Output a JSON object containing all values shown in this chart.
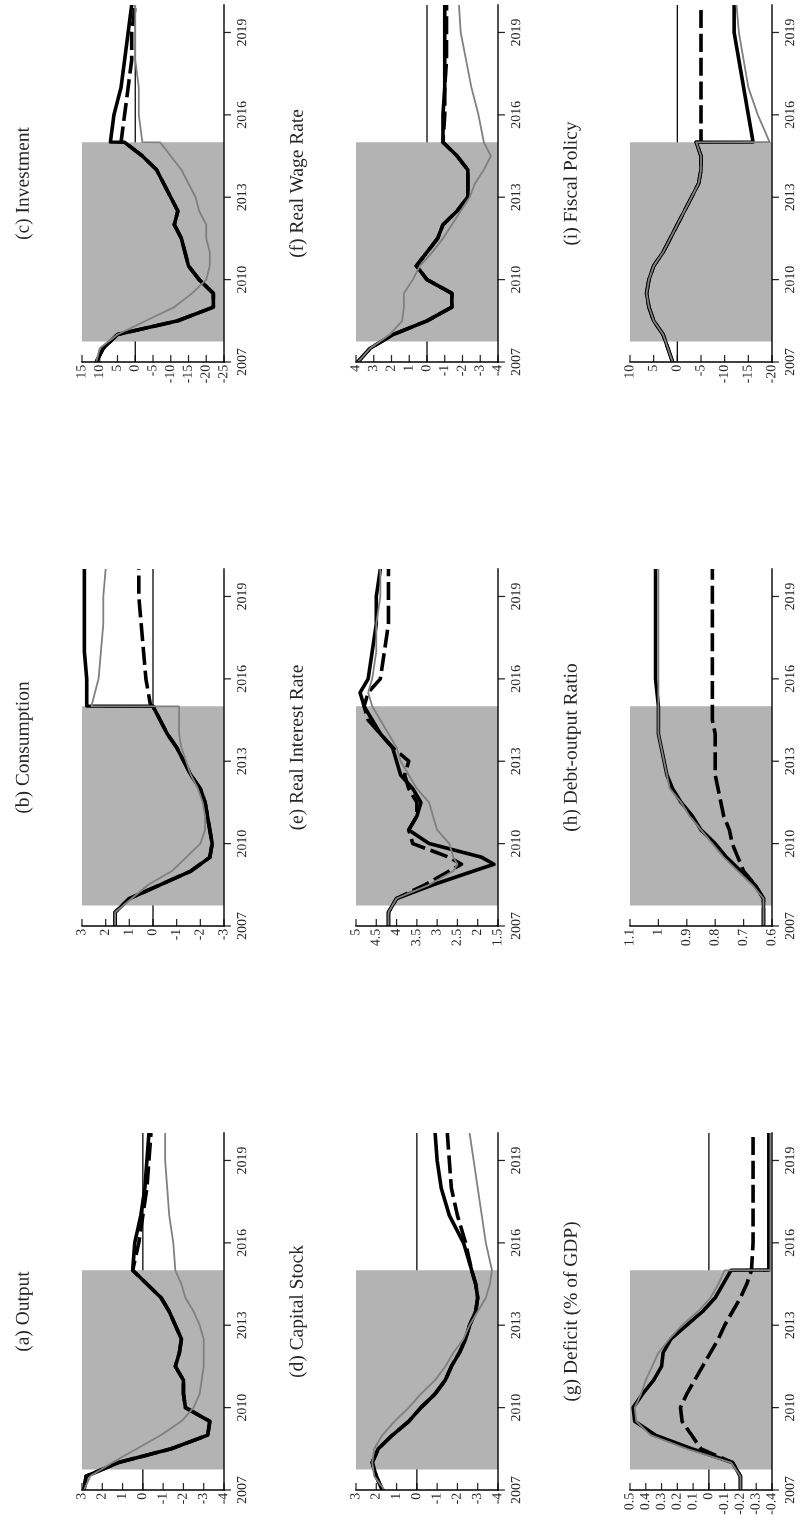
{
  "chart_data": [
    {
      "type": "line",
      "title": "(a) Output",
      "xlim": [
        3,
        -4
      ],
      "xticks": [
        -4,
        -3,
        -2,
        -1,
        0,
        1,
        2,
        3
      ],
      "ylim": [
        2007,
        2020
      ],
      "yticks": [
        2007,
        2010,
        2013,
        2016,
        2019
      ],
      "bands": [
        {
          "axis": "y",
          "from": 2007.75,
          "to": 2015,
          "color": "#b3b3b3"
        }
      ],
      "ref_lines": [
        {
          "axis": "x",
          "value": 0,
          "color": "#000000"
        }
      ],
      "series": [
        {
          "color": "#000000",
          "line_style": "dashed",
          "x": [
            2.9,
            2.8,
            1.2,
            -1.4,
            -3.2,
            -3.3,
            -2.1,
            -2.0,
            -2.0,
            -1.6,
            -1.8,
            -1.9,
            -1.6,
            -1.3,
            -0.9,
            -0.2,
            0.5,
            0.5,
            0.2,
            0.0,
            -0.2,
            -0.3,
            -0.4
          ],
          "values": [
            2007,
            2007.5,
            2008,
            2008.5,
            2009,
            2009.5,
            2010,
            2010.5,
            2011,
            2011.5,
            2012,
            2012.5,
            2013,
            2013.5,
            2014,
            2014.5,
            2015,
            2015.01,
            2016,
            2017,
            2018,
            2019,
            2020
          ]
        },
        {
          "color": "#000000",
          "line_style": "solid",
          "x": [
            2.9,
            2.8,
            1.2,
            -1.4,
            -3.2,
            -3.3,
            -2.1,
            -2.0,
            -2.0,
            -1.6,
            -1.8,
            -1.9,
            -1.6,
            -1.3,
            -0.9,
            -0.2,
            0.5,
            0.5,
            0.4,
            0.1,
            -0.1,
            -0.2,
            -0.3
          ],
          "values": [
            2007,
            2007.5,
            2008,
            2008.5,
            2009,
            2009.5,
            2010,
            2010.5,
            2011,
            2011.5,
            2012,
            2012.5,
            2013,
            2013.5,
            2014,
            2014.5,
            2015,
            2015.01,
            2016,
            2017,
            2018,
            2019,
            2020
          ]
        },
        {
          "color": "#808080",
          "line_style": "solid",
          "x": [
            2.9,
            2.6,
            1.5,
            0.3,
            -0.9,
            -1.9,
            -2.5,
            -2.8,
            -2.9,
            -3.0,
            -3.0,
            -3.0,
            -2.8,
            -2.5,
            -2.1,
            -1.9,
            -1.6,
            -1.6,
            -1.5,
            -1.3,
            -1.2,
            -1.1,
            -1.1
          ],
          "values": [
            2007,
            2007.5,
            2008,
            2008.5,
            2009,
            2009.5,
            2010,
            2010.5,
            2011,
            2011.5,
            2012,
            2012.5,
            2013,
            2013.5,
            2014,
            2014.5,
            2015,
            2015.01,
            2016,
            2017,
            2018,
            2019,
            2020
          ]
        }
      ]
    },
    {
      "type": "line",
      "title": "(b) Consumption",
      "xlim": [
        3,
        -3
      ],
      "xticks": [
        -3,
        -2,
        -1,
        0,
        1,
        2,
        3
      ],
      "ylim": [
        2007,
        2020
      ],
      "yticks": [
        2007,
        2010,
        2013,
        2016,
        2019
      ],
      "bands": [
        {
          "axis": "y",
          "from": 2007.75,
          "to": 2015,
          "color": "#b3b3b3"
        }
      ],
      "ref_lines": [
        {
          "axis": "x",
          "value": 0,
          "color": "#000000"
        }
      ],
      "series": [
        {
          "color": "#000000",
          "line_style": "dashed",
          "x": [
            1.6,
            1.6,
            1.0,
            -0.3,
            -1.6,
            -2.4,
            -2.5,
            -2.4,
            -2.3,
            -2.2,
            -2.0,
            -1.6,
            -1.3,
            -1.0,
            -0.6,
            -0.3,
            0.0,
            0.1,
            0.3,
            0.4,
            0.5,
            0.6,
            0.6
          ],
          "values": [
            2007,
            2007.5,
            2008,
            2008.5,
            2009,
            2009.5,
            2010,
            2010.5,
            2011,
            2011.5,
            2012,
            2012.5,
            2013,
            2013.5,
            2014,
            2014.5,
            2015,
            2015.01,
            2016,
            2017,
            2018,
            2019,
            2020
          ]
        },
        {
          "color": "#000000",
          "line_style": "solid",
          "x": [
            1.6,
            1.6,
            1.0,
            -0.3,
            -1.6,
            -2.4,
            -2.5,
            -2.4,
            -2.3,
            -2.2,
            -2.0,
            -1.6,
            -1.3,
            -1.0,
            -0.6,
            -0.3,
            0.0,
            2.8,
            2.8,
            2.9,
            2.9,
            2.9,
            2.9
          ],
          "values": [
            2007,
            2007.5,
            2008,
            2008.5,
            2009,
            2009.5,
            2010,
            2010.5,
            2011,
            2011.5,
            2012,
            2012.5,
            2013,
            2013.5,
            2014,
            2014.5,
            2015,
            2015.01,
            2016,
            2017,
            2018,
            2019,
            2020
          ]
        },
        {
          "color": "#808080",
          "line_style": "solid",
          "x": [
            1.6,
            1.6,
            0.9,
            0.2,
            -0.8,
            -1.4,
            -2.0,
            -2.2,
            -2.2,
            -2.1,
            -1.9,
            -1.6,
            -1.4,
            -1.2,
            -1.1,
            -1.1,
            -1.1,
            2.6,
            2.3,
            2.2,
            2.1,
            2.1,
            2.0
          ],
          "values": [
            2007,
            2007.5,
            2008,
            2008.5,
            2009,
            2009.5,
            2010,
            2010.5,
            2011,
            2011.5,
            2012,
            2012.5,
            2013,
            2013.5,
            2014,
            2014.5,
            2015,
            2015.01,
            2016,
            2017,
            2018,
            2019,
            2020
          ]
        }
      ]
    },
    {
      "type": "line",
      "title": "(c) Investment",
      "xlim": [
        15,
        -25
      ],
      "xticks": [
        -25,
        -20,
        -15,
        -10,
        -5,
        0,
        5,
        10,
        15
      ],
      "ylim": [
        2007,
        2020
      ],
      "yticks": [
        2007,
        2010,
        2013,
        2016,
        2019
      ],
      "bands": [
        {
          "axis": "y",
          "from": 2007.75,
          "to": 2015,
          "color": "#b3b3b3"
        }
      ],
      "ref_lines": [
        {
          "axis": "x",
          "value": 0,
          "color": "#000000"
        }
      ],
      "series": [
        {
          "color": "#000000",
          "line_style": "dashed",
          "x": [
            11,
            9,
            5,
            -12,
            -22,
            -22,
            -18,
            -15,
            -14,
            -13,
            -11,
            -12,
            -10,
            -8,
            -6,
            -2,
            3,
            4,
            3,
            2,
            1,
            1,
            0
          ],
          "values": [
            2007,
            2007.5,
            2008,
            2008.5,
            2009,
            2009.5,
            2010,
            2010.5,
            2011,
            2011.5,
            2012,
            2012.5,
            2013,
            2013.5,
            2014,
            2014.5,
            2015,
            2015.01,
            2016,
            2017,
            2018,
            2019,
            2020
          ]
        },
        {
          "color": "#000000",
          "line_style": "solid",
          "x": [
            11,
            9,
            5,
            -12,
            -22,
            -22,
            -18,
            -15,
            -14,
            -13,
            -11,
            -12,
            -10,
            -8,
            -6,
            -2,
            3,
            7,
            6,
            4,
            3,
            2,
            1
          ],
          "values": [
            2007,
            2007.5,
            2008,
            2008.5,
            2009,
            2009.5,
            2010,
            2010.5,
            2011,
            2011.5,
            2012,
            2012.5,
            2013,
            2013.5,
            2014,
            2014.5,
            2015,
            2015.01,
            2016,
            2017,
            2018,
            2019,
            2020
          ]
        },
        {
          "color": "#808080",
          "line_style": "solid",
          "x": [
            11,
            10,
            5,
            -3,
            -11,
            -16,
            -20,
            -21,
            -21,
            -20,
            -20,
            -18,
            -17,
            -15,
            -13,
            -10,
            -7,
            -2,
            -1,
            -1,
            0,
            0,
            0
          ],
          "values": [
            2007,
            2007.5,
            2008,
            2008.5,
            2009,
            2009.5,
            2010,
            2010.5,
            2011,
            2011.5,
            2012,
            2012.5,
            2013,
            2013.5,
            2014,
            2014.5,
            2015,
            2015.01,
            2016,
            2017,
            2018,
            2019,
            2020
          ]
        }
      ]
    },
    {
      "type": "line",
      "title": "(d) Capital Stock",
      "xlim": [
        3,
        -4
      ],
      "xticks": [
        -4,
        -3,
        -2,
        -1,
        0,
        1,
        2,
        3
      ],
      "ylim": [
        2007,
        2020
      ],
      "yticks": [
        2007,
        2010,
        2013,
        2016,
        2019
      ],
      "bands": [
        {
          "axis": "y",
          "from": 2007.75,
          "to": 2015,
          "color": "#b3b3b3"
        }
      ],
      "ref_lines": [
        {
          "axis": "x",
          "value": 0,
          "color": "#000000"
        }
      ],
      "series": [
        {
          "color": "#000000",
          "line_style": "dashed",
          "x": [
            1.7,
            2.0,
            2.2,
            1.9,
            1.2,
            0.4,
            -0.2,
            -0.9,
            -1.4,
            -1.7,
            -2.1,
            -2.4,
            -2.6,
            -2.9,
            -3.0,
            -2.9,
            -2.7,
            -2.7,
            -2.4,
            -2.0,
            -1.7,
            -1.6,
            -1.5
          ],
          "values": [
            2007,
            2007.5,
            2008,
            2008.5,
            2009,
            2009.5,
            2010,
            2010.5,
            2011,
            2011.5,
            2012,
            2012.5,
            2013,
            2013.5,
            2014,
            2014.5,
            2015,
            2015.01,
            2016,
            2017,
            2018,
            2019,
            2020
          ]
        },
        {
          "color": "#000000",
          "line_style": "solid",
          "x": [
            1.7,
            2.0,
            2.2,
            1.9,
            1.2,
            0.4,
            -0.2,
            -0.9,
            -1.4,
            -1.7,
            -2.1,
            -2.4,
            -2.6,
            -2.9,
            -3.0,
            -2.9,
            -2.7,
            -2.7,
            -2.3,
            -1.6,
            -1.2,
            -1.0,
            -0.9
          ],
          "values": [
            2007,
            2007.5,
            2008,
            2008.5,
            2009,
            2009.5,
            2010,
            2010.5,
            2011,
            2011.5,
            2012,
            2012.5,
            2013,
            2013.5,
            2014,
            2014.5,
            2015,
            2015.01,
            2016,
            2017,
            2018,
            2019,
            2020
          ]
        },
        {
          "color": "#808080",
          "line_style": "solid",
          "x": [
            1.6,
            2.1,
            2.2,
            2.1,
            1.7,
            1.1,
            0.4,
            -0.2,
            -0.9,
            -1.4,
            -1.8,
            -2.3,
            -2.6,
            -3.0,
            -3.4,
            -3.6,
            -3.7,
            -3.7,
            -3.4,
            -3.2,
            -3.0,
            -2.8,
            -2.6
          ],
          "values": [
            2007,
            2007.5,
            2008,
            2008.5,
            2009,
            2009.5,
            2010,
            2010.5,
            2011,
            2011.5,
            2012,
            2012.5,
            2013,
            2013.5,
            2014,
            2014.5,
            2015,
            2015.01,
            2016,
            2017,
            2018,
            2019,
            2020
          ]
        }
      ]
    },
    {
      "type": "line",
      "title": "(e) Real Interest Rate",
      "xlim": [
        5,
        1.5
      ],
      "xticks": [
        1.5,
        2,
        2.5,
        3,
        3.5,
        4,
        4.5,
        5
      ],
      "ylim": [
        2007,
        2020
      ],
      "yticks": [
        2007,
        2010,
        2013,
        2016,
        2019
      ],
      "bands": [
        {
          "axis": "y",
          "from": 2007.75,
          "to": 2015,
          "color": "#b3b3b3"
        }
      ],
      "series": [
        {
          "color": "#000000",
          "line_style": "dashed",
          "x": [
            4.2,
            4.2,
            4.0,
            3.3,
            2.7,
            2.4,
            2.7,
            3.6,
            3.7,
            3.5,
            3.5,
            3.7,
            3.8,
            3.7,
            4.1,
            4.4,
            4.7,
            4.8,
            4.7,
            4.4,
            4.3,
            4.2,
            4.2,
            4.2
          ],
          "values": [
            2007,
            2007.5,
            2008,
            2008.5,
            2009,
            2009.25,
            2009.5,
            2010,
            2010.5,
            2011,
            2011.5,
            2012,
            2012.5,
            2013,
            2013.5,
            2014,
            2014.5,
            2015,
            2015.5,
            2016,
            2017,
            2018,
            2019,
            2020
          ]
        },
        {
          "color": "#000000",
          "line_style": "solid",
          "x": [
            4.2,
            4.2,
            4.0,
            3.1,
            2.1,
            1.6,
            1.9,
            3.2,
            3.7,
            3.5,
            3.4,
            3.6,
            3.9,
            4.0,
            4.1,
            4.4,
            4.6,
            4.8,
            4.9,
            4.7,
            4.6,
            4.5,
            4.5,
            4.4
          ],
          "values": [
            2007,
            2007.5,
            2008,
            2008.5,
            2009,
            2009.25,
            2009.5,
            2010,
            2010.5,
            2011,
            2011.5,
            2012,
            2012.5,
            2013,
            2013.5,
            2014,
            2014.5,
            2015,
            2015.5,
            2016,
            2017,
            2018,
            2019,
            2020
          ]
        },
        {
          "color": "#808080",
          "line_style": "solid",
          "x": [
            4.2,
            4.2,
            4.0,
            3.2,
            2.6,
            2.5,
            2.6,
            2.7,
            3.0,
            3.1,
            3.2,
            3.5,
            3.7,
            3.9,
            4.0,
            4.2,
            4.4,
            4.6,
            4.7,
            4.6,
            4.5,
            4.5,
            4.4,
            4.4
          ],
          "values": [
            2007,
            2007.5,
            2008,
            2008.5,
            2009,
            2009.25,
            2009.5,
            2010,
            2010.5,
            2011,
            2011.5,
            2012,
            2012.5,
            2013,
            2013.5,
            2014,
            2014.5,
            2015,
            2015.5,
            2016,
            2017,
            2018,
            2019,
            2020
          ]
        }
      ]
    },
    {
      "type": "line",
      "title": "(f) Real Wage Rate",
      "xlim": [
        4,
        -4
      ],
      "xticks": [
        -4,
        -3,
        -2,
        -1,
        0,
        1,
        2,
        3,
        4
      ],
      "ylim": [
        2007,
        2020
      ],
      "yticks": [
        2007,
        2010,
        2013,
        2016,
        2019
      ],
      "bands": [
        {
          "axis": "y",
          "from": 2007.75,
          "to": 2015,
          "color": "#b3b3b3"
        }
      ],
      "ref_lines": [
        {
          "axis": "x",
          "value": 0,
          "color": "#000000"
        }
      ],
      "series": [
        {
          "color": "#000000",
          "line_style": "dashed",
          "x": [
            3.9,
            3.2,
            1.9,
            0.0,
            -1.4,
            -1.4,
            0.0,
            0.6,
            0.0,
            -0.6,
            -0.9,
            -1.7,
            -2.3,
            -2.3,
            -2.3,
            -1.7,
            -0.9,
            -0.9,
            -1.0,
            -1.0,
            -1.1,
            -1.1,
            -1.1
          ],
          "values": [
            2007,
            2007.5,
            2008,
            2008.5,
            2009,
            2009.5,
            2010,
            2010.5,
            2011,
            2011.5,
            2012,
            2012.5,
            2013,
            2013.5,
            2014,
            2014.5,
            2015,
            2015.01,
            2016,
            2017,
            2018,
            2019,
            2020
          ]
        },
        {
          "color": "#000000",
          "line_style": "solid",
          "x": [
            3.9,
            3.2,
            1.9,
            0.0,
            -1.4,
            -1.4,
            0.0,
            0.6,
            0.0,
            -0.6,
            -0.9,
            -1.7,
            -2.3,
            -2.3,
            -2.3,
            -1.7,
            -0.9,
            -0.9,
            -0.9,
            -1.0,
            -1.0,
            -1.0,
            -1.0
          ],
          "values": [
            2007,
            2007.5,
            2008,
            2008.5,
            2009,
            2009.5,
            2010,
            2010.5,
            2011,
            2011.5,
            2012,
            2012.5,
            2013,
            2013.5,
            2014,
            2014.5,
            2015,
            2015.01,
            2016,
            2017,
            2018,
            2019,
            2020
          ]
        },
        {
          "color": "#808080",
          "line_style": "solid",
          "x": [
            3.9,
            3.2,
            2.1,
            1.4,
            1.3,
            1.3,
            0.8,
            0.4,
            -0.3,
            -0.9,
            -1.4,
            -1.9,
            -2.4,
            -2.7,
            -3.2,
            -3.6,
            -3.2,
            -3.2,
            -2.9,
            -2.5,
            -2.2,
            -1.9,
            -1.8
          ],
          "values": [
            2007,
            2007.5,
            2008,
            2008.5,
            2009,
            2009.5,
            2010,
            2010.5,
            2011,
            2011.5,
            2012,
            2012.5,
            2013,
            2013.5,
            2014,
            2014.5,
            2015,
            2015.01,
            2016,
            2017,
            2018,
            2019,
            2020
          ]
        }
      ]
    },
    {
      "type": "line",
      "title": "(g) Deficit (% of GDP)",
      "xlim": [
        0.5,
        -0.4
      ],
      "xticks": [
        -0.4,
        -0.3,
        -0.2,
        -0.1,
        0,
        0.1,
        0.2,
        0.3,
        0.4,
        0.5
      ],
      "ylim": [
        2007,
        2020
      ],
      "yticks": [
        2007,
        2010,
        2013,
        2016,
        2019
      ],
      "bands": [
        {
          "axis": "y",
          "from": 2007.75,
          "to": 2015,
          "color": "#b3b3b3"
        }
      ],
      "ref_lines": [
        {
          "axis": "x",
          "value": 0,
          "color": "#000000"
        }
      ],
      "series": [
        {
          "color": "#000000",
          "line_style": "dashed",
          "x": [
            -0.2,
            -0.2,
            -0.15,
            0.05,
            0.11,
            0.17,
            0.18,
            0.14,
            0.09,
            0.04,
            -0.01,
            -0.06,
            -0.1,
            -0.15,
            -0.2,
            -0.24,
            -0.27,
            -0.27,
            -0.28,
            -0.28,
            -0.28,
            -0.28,
            -0.28
          ],
          "values": [
            2007,
            2007.5,
            2008,
            2008.5,
            2009,
            2009.5,
            2010,
            2010.5,
            2011,
            2011.5,
            2012,
            2012.5,
            2013,
            2013.5,
            2014,
            2014.5,
            2015,
            2015.01,
            2016,
            2017,
            2018,
            2019,
            2020
          ]
        },
        {
          "color": "#000000",
          "line_style": "solid",
          "x": [
            -0.2,
            -0.2,
            -0.15,
            0.11,
            0.34,
            0.47,
            0.48,
            0.42,
            0.35,
            0.3,
            0.29,
            0.24,
            0.14,
            0.04,
            -0.04,
            -0.09,
            -0.14,
            -0.38,
            -0.38,
            -0.38,
            -0.38,
            -0.38,
            -0.38
          ],
          "values": [
            2007,
            2007.5,
            2008,
            2008.5,
            2009,
            2009.5,
            2010,
            2010.5,
            2011,
            2011.5,
            2012,
            2012.5,
            2013,
            2013.5,
            2014,
            2014.5,
            2015,
            2015.01,
            2016,
            2017,
            2018,
            2019,
            2020
          ]
        },
        {
          "color": "#808080",
          "line_style": "solid",
          "x": [
            -0.2,
            -0.2,
            -0.14,
            0.14,
            0.37,
            0.46,
            0.47,
            0.43,
            0.4,
            0.36,
            0.32,
            0.25,
            0.17,
            0.07,
            -0.01,
            -0.06,
            -0.1,
            -0.39,
            -0.39,
            -0.39,
            -0.39,
            -0.39,
            -0.39
          ],
          "values": [
            2007,
            2007.5,
            2008,
            2008.5,
            2009,
            2009.5,
            2010,
            2010.5,
            2011,
            2011.5,
            2012,
            2012.5,
            2013,
            2013.5,
            2014,
            2014.5,
            2015,
            2015.01,
            2016,
            2017,
            2018,
            2019,
            2020
          ]
        }
      ]
    },
    {
      "type": "line",
      "title": "(h) Debt-output Ratio",
      "xlim": [
        1.1,
        0.6
      ],
      "xticks": [
        0.6,
        0.7,
        0.8,
        0.9,
        1,
        1.1
      ],
      "ylim": [
        2007,
        2020
      ],
      "yticks": [
        2007,
        2010,
        2013,
        2016,
        2019
      ],
      "bands": [
        {
          "axis": "y",
          "from": 2007.75,
          "to": 2015,
          "color": "#b3b3b3"
        }
      ],
      "series": [
        {
          "color": "#000000",
          "line_style": "dashed",
          "x": [
            0.63,
            0.63,
            0.63,
            0.66,
            0.7,
            0.72,
            0.74,
            0.75,
            0.77,
            0.78,
            0.79,
            0.8,
            0.8,
            0.8,
            0.8,
            0.81,
            0.81,
            0.81,
            0.81,
            0.81,
            0.81,
            0.81,
            0.81
          ],
          "values": [
            2007,
            2007.5,
            2008,
            2008.5,
            2009,
            2009.5,
            2010,
            2010.5,
            2011,
            2011.5,
            2012,
            2012.5,
            2013,
            2013.5,
            2014,
            2014.5,
            2015,
            2015.01,
            2016,
            2017,
            2018,
            2019,
            2020
          ]
        },
        {
          "color": "#000000",
          "line_style": "solid",
          "x": [
            0.63,
            0.63,
            0.63,
            0.66,
            0.71,
            0.76,
            0.8,
            0.85,
            0.88,
            0.92,
            0.95,
            0.97,
            0.98,
            0.99,
            1.0,
            1.0,
            1.0,
            1.0,
            1.01,
            1.01,
            1.01,
            1.01,
            1.01
          ],
          "values": [
            2007,
            2007.5,
            2008,
            2008.5,
            2009,
            2009.5,
            2010,
            2010.5,
            2011,
            2011.5,
            2012,
            2012.5,
            2013,
            2013.5,
            2014,
            2014.5,
            2015,
            2015.01,
            2016,
            2017,
            2018,
            2019,
            2020
          ]
        },
        {
          "color": "#808080",
          "line_style": "solid",
          "x": [
            0.63,
            0.63,
            0.63,
            0.67,
            0.72,
            0.77,
            0.81,
            0.85,
            0.89,
            0.92,
            0.96,
            0.97,
            0.98,
            0.99,
            1.0,
            1.0,
            1.0,
            1.0,
            1.0,
            1.0,
            1.0,
            1.0,
            1.0
          ],
          "values": [
            2007,
            2007.5,
            2008,
            2008.5,
            2009,
            2009.5,
            2010,
            2010.5,
            2011,
            2011.5,
            2012,
            2012.5,
            2013,
            2013.5,
            2014,
            2014.5,
            2015,
            2015.01,
            2016,
            2017,
            2018,
            2019,
            2020
          ]
        }
      ]
    },
    {
      "type": "line",
      "title": "(i) Fiscal Policy",
      "xlim": [
        10,
        -20
      ],
      "xticks": [
        -20,
        -15,
        -10,
        -5,
        0,
        5,
        10
      ],
      "ylim": [
        2007,
        2020
      ],
      "yticks": [
        2007,
        2010,
        2013,
        2016,
        2019
      ],
      "bands": [
        {
          "axis": "y",
          "from": 2007.75,
          "to": 2015,
          "color": "#b3b3b3"
        }
      ],
      "ref_lines": [
        {
          "axis": "x",
          "value": 0,
          "color": "#000000"
        }
      ],
      "series": [
        {
          "color": "#000000",
          "line_style": "dashed",
          "x": [
            1,
            2,
            3,
            5,
            6,
            6.5,
            6,
            5,
            3,
            1.5,
            0,
            -1.5,
            -3,
            -4.5,
            -5,
            -5,
            -4,
            -5,
            -5,
            -5,
            -5,
            -5,
            -5
          ],
          "values": [
            2007,
            2007.5,
            2008,
            2008.5,
            2009,
            2009.5,
            2010,
            2010.5,
            2011,
            2011.5,
            2012,
            2012.5,
            2013,
            2013.5,
            2014,
            2014.5,
            2015,
            2015.01,
            2016,
            2017,
            2018,
            2019,
            2020
          ]
        },
        {
          "color": "#000000",
          "line_style": "solid",
          "x": [
            1,
            2,
            3,
            5,
            6,
            6.5,
            6,
            5,
            3,
            1.5,
            0,
            -1.5,
            -3,
            -4.5,
            -5,
            -5,
            -4,
            -16,
            -15,
            -14,
            -13,
            -12,
            -12
          ],
          "values": [
            2007,
            2007.5,
            2008,
            2008.5,
            2009,
            2009.5,
            2010,
            2010.5,
            2011,
            2011.5,
            2012,
            2012.5,
            2013,
            2013.5,
            2014,
            2014.5,
            2015,
            2015.01,
            2016,
            2017,
            2018,
            2019,
            2020
          ]
        },
        {
          "color": "#808080",
          "line_style": "solid",
          "x": [
            1,
            2,
            3,
            5,
            6,
            6.5,
            6,
            5,
            3,
            1.5,
            0,
            -1.5,
            -3,
            -4.5,
            -5,
            -5,
            -4,
            -19.5,
            -17,
            -15,
            -14,
            -13,
            -12.5
          ],
          "values": [
            2007,
            2007.5,
            2008,
            2008.5,
            2009,
            2009.5,
            2010,
            2010.5,
            2011,
            2011.5,
            2012,
            2012.5,
            2013,
            2013.5,
            2014,
            2014.5,
            2015,
            2015.01,
            2016,
            2017,
            2018,
            2019,
            2020
          ]
        }
      ]
    }
  ]
}
